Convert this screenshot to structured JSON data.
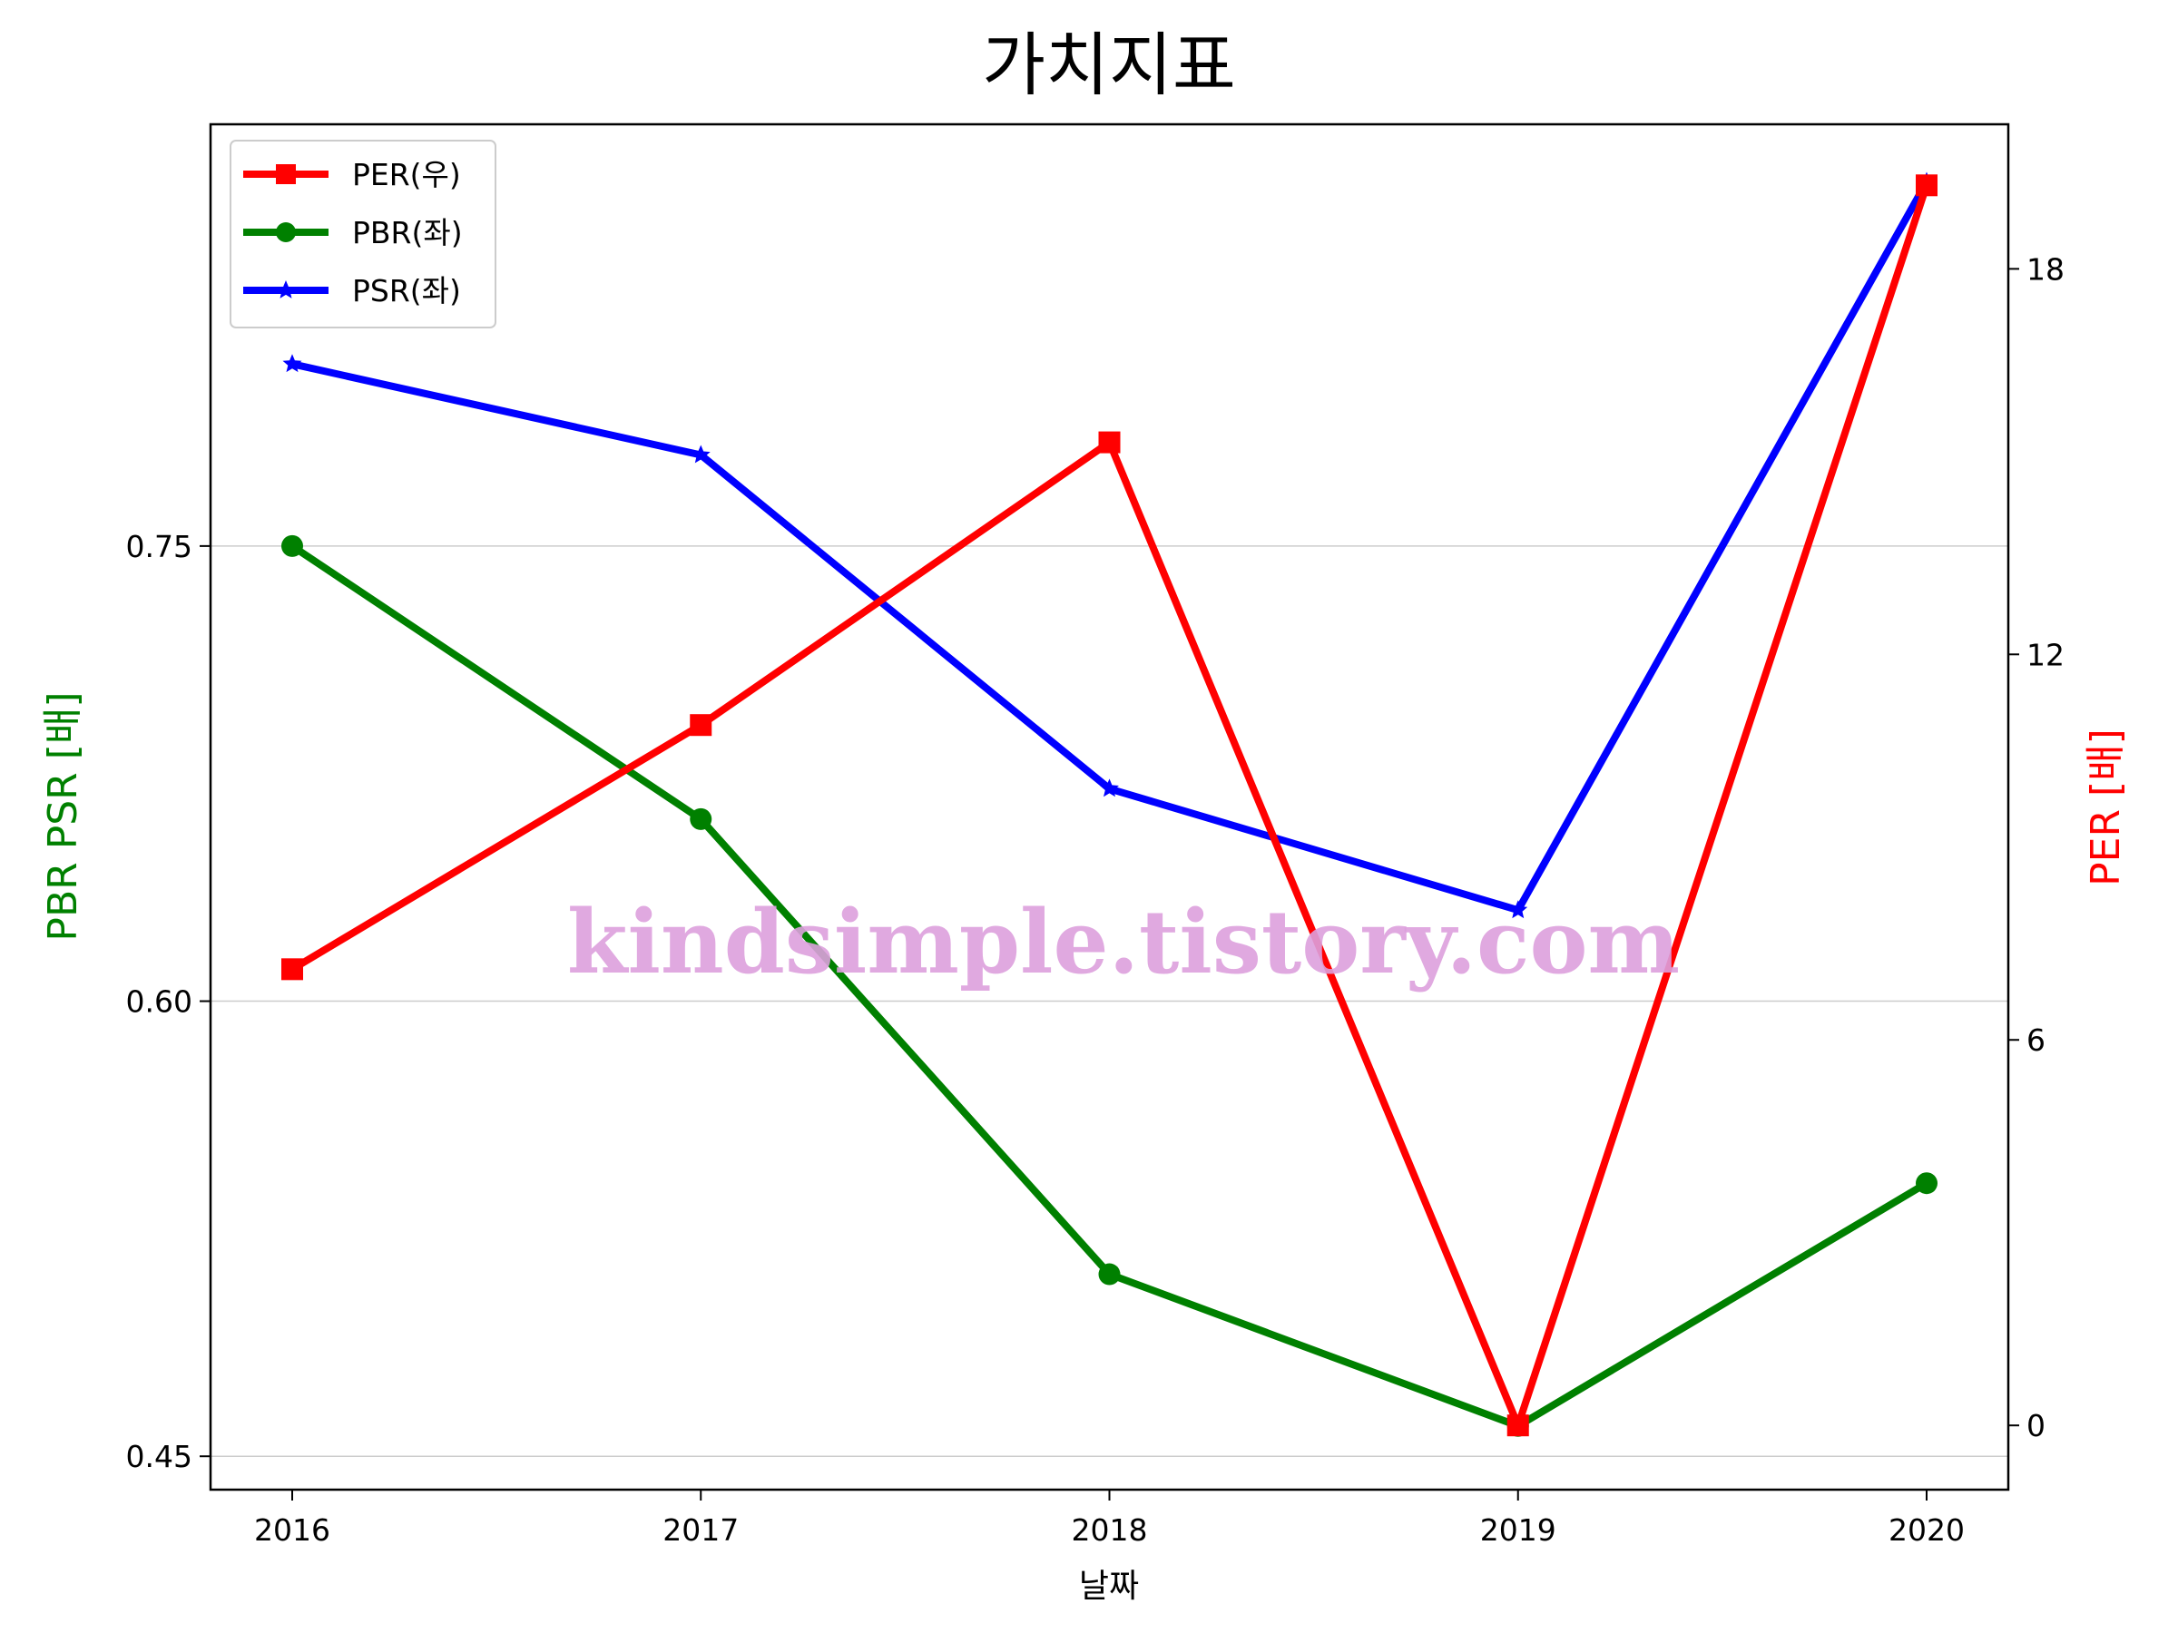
{
  "chart_data": {
    "type": "line",
    "title": "가치지표",
    "xlabel": "날짜",
    "ylabel_left": "PBR PSR [배]",
    "ylabel_right": "PER [배]",
    "categories": [
      "2016",
      "2017",
      "2018",
      "2019",
      "2020"
    ],
    "y_left": {
      "ticks": [
        "0.45",
        "0.60",
        "0.75"
      ],
      "tick_values": [
        0.45,
        0.6,
        0.75
      ],
      "range": [
        0.439,
        0.889
      ]
    },
    "y_right": {
      "ticks": [
        "0",
        "6",
        "12",
        "18"
      ],
      "tick_values": [
        0,
        6,
        12,
        18
      ],
      "range": [
        -1.0,
        20.25
      ]
    },
    "series": [
      {
        "name": "PER(우)",
        "axis": "right",
        "color": "#ff0000",
        "marker": "square",
        "values": [
          7.1,
          10.9,
          15.3,
          0.0,
          19.3
        ]
      },
      {
        "name": "PBR(좌)",
        "axis": "left",
        "color": "#008000",
        "marker": "circle",
        "values": [
          0.75,
          0.66,
          0.51,
          0.46,
          0.54
        ]
      },
      {
        "name": "PSR(좌)",
        "axis": "left",
        "color": "#0000ff",
        "marker": "star",
        "values": [
          0.81,
          0.78,
          0.67,
          0.63,
          0.87
        ]
      }
    ],
    "legend": {
      "position": "top-left"
    },
    "grid": "horizontal",
    "ylabel_left_color": "#008000",
    "ylabel_right_color": "#ff0000",
    "watermark": {
      "text": "kindsimple.tistory.com",
      "color": "#dda0dd"
    }
  }
}
